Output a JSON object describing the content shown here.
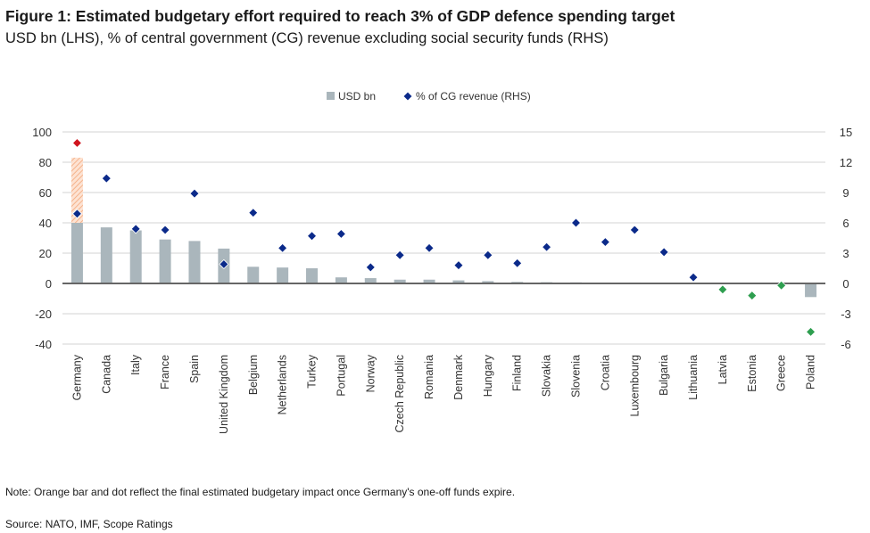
{
  "title": "Figure 1: Estimated budgetary effort required to reach 3% of GDP defence spending target",
  "subtitle": "USD bn (LHS), % of central government (CG) revenue excluding social security funds (RHS)",
  "note": "Note: Orange bar and dot reflect the final estimated budgetary impact once Germany's one-off funds expire.",
  "source": "Source: NATO, IMF, Scope Ratings",
  "chart_data": {
    "type": "bar",
    "title": "",
    "legend": {
      "placement": "top-center",
      "entries": [
        "USD bn",
        "% of CG revenue (RHS)"
      ]
    },
    "categories": [
      "Germany",
      "Canada",
      "Italy",
      "France",
      "Spain",
      "United Kingdom",
      "Belgium",
      "Netherlands",
      "Turkey",
      "Portugal",
      "Norway",
      "Czech Republic",
      "Romania",
      "Denmark",
      "Hungary",
      "Finland",
      "Slovakia",
      "Slovenia",
      "Croatia",
      "Luxembourg",
      "Bulgaria",
      "Lithuania",
      "Latvia",
      "Estonia",
      "Greece",
      "Poland"
    ],
    "y_left": {
      "range": [
        -40,
        100
      ],
      "ticks": [
        -40,
        -20,
        0,
        20,
        40,
        60,
        80,
        100
      ]
    },
    "y_right": {
      "range": [
        -6,
        15
      ],
      "ticks": [
        -6,
        -3,
        0,
        3,
        6,
        9,
        12,
        15
      ]
    },
    "grid": true,
    "series": [
      {
        "name": "USD bn",
        "axis": "left",
        "type": "bar",
        "color": "#aab6bc",
        "values": [
          40,
          37,
          35,
          29,
          28,
          23,
          11,
          10.5,
          10,
          4,
          3.5,
          2.5,
          2.5,
          2,
          1.5,
          1,
          0.8,
          0.7,
          0.6,
          0.6,
          0.5,
          0.3,
          0,
          0,
          0,
          -9
        ]
      },
      {
        "name": "% of CG revenue (RHS)",
        "axis": "right",
        "type": "scatter",
        "color": "#0b2a8a",
        "negative_color": "#2e9e4f",
        "values": [
          6.9,
          10.4,
          5.4,
          5.3,
          8.9,
          1.9,
          7.0,
          3.5,
          4.7,
          4.9,
          1.6,
          2.8,
          3.5,
          1.8,
          2.8,
          2.0,
          3.6,
          6.0,
          4.1,
          5.3,
          3.1,
          0.6,
          -0.6,
          -1.2,
          -0.2,
          -4.8
        ]
      }
    ],
    "germany_final": {
      "bar_value": 83,
      "dot_value": 13.9,
      "bar_color": "#f4a77a",
      "dot_color": "#d0141e"
    }
  }
}
